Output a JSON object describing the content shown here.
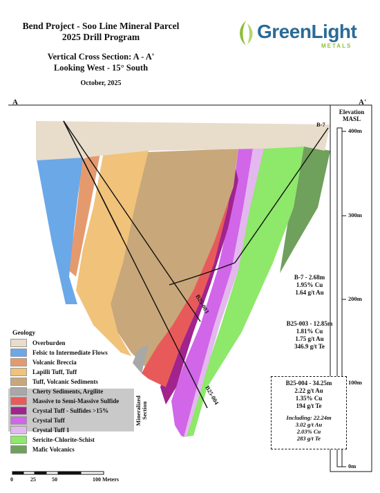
{
  "header": {
    "title_line1": "Bend Project - Soo Line Mineral Parcel",
    "title_line2": "2025 Drill Program",
    "subtitle_line1": "Vertical Cross Section: A - A'",
    "subtitle_line2": "Looking West - 15° South",
    "date": "October, 2025"
  },
  "logo": {
    "word_green": "Green",
    "word_light": "Light",
    "sub": "METALS"
  },
  "section_labels": {
    "left": "A",
    "right": "A'"
  },
  "elevation": {
    "title_line1": "Elevation",
    "title_line2": "MASL",
    "ticks": [
      "400m",
      "300m",
      "200m",
      "100m",
      "0m"
    ]
  },
  "drill_holes": [
    "B-7",
    "B25-003",
    "B25-004"
  ],
  "intercepts": {
    "b7": {
      "line1": "B-7 - 2.68m",
      "line2": "1.95% Cu",
      "line3": "1.64 g/t Au"
    },
    "b25_003": {
      "line1": "B25-003 - 12.85m",
      "line2": "1.81% Cu",
      "line3": "1.75 g/t Au",
      "line4": "346.9 g/t Te"
    },
    "b25_004": {
      "line1": "B25-004 - 34.25m",
      "line2": "2.22 g/t Au",
      "line3": "1.35% Cu",
      "line4": "194 g/t Te",
      "inc1": "Including: 22.24m",
      "inc2": "3.02 g/t Au",
      "inc3": "2.03% Cu",
      "inc4": "283 g/t Te"
    }
  },
  "legend": {
    "title": "Geology",
    "mineralized_label": "Mineralized Section",
    "items": [
      {
        "label": "Overburden",
        "color": "#e8dccb"
      },
      {
        "label": "Felsic to Intermediate Flows",
        "color": "#6aa8e8"
      },
      {
        "label": "Volcanic Breccia",
        "color": "#e59a6e"
      },
      {
        "label": "Lapilli Tuff, Tuff",
        "color": "#f0c27a"
      },
      {
        "label": "Tuff, Volcanic Sediments",
        "color": "#c8a77a"
      },
      {
        "label": "Cherty Sediments, Argilite",
        "color": "#a8a8a8"
      },
      {
        "label": "Massive to Semi-Massive Sulfide",
        "color": "#e85a5a"
      },
      {
        "label": "Crystal Tuff - Sulfides >15%",
        "color": "#a1238e"
      },
      {
        "label": "Crystal Tuff",
        "color": "#d166e8"
      },
      {
        "label": "Crystal Tuff 1",
        "color": "#e3b8ee"
      },
      {
        "label": "Sericite-Chlorite-Schist",
        "color": "#8ee86a"
      },
      {
        "label": "Mafic Volcanics",
        "color": "#6fa05c"
      }
    ]
  },
  "scale_bar": {
    "labels": [
      "0",
      "25",
      "50",
      "100 Meters"
    ]
  }
}
